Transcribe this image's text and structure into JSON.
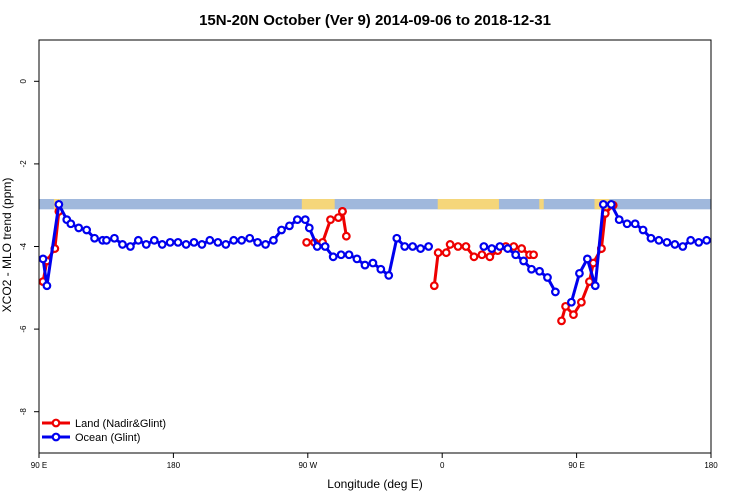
{
  "chart_data": {
    "type": "line",
    "title": "15N-20N October (Ver 9)   2014-09-06 to 2018-12-31",
    "xlabel": "Longitude (deg E)",
    "ylabel": "XCO2 - MLO trend (ppm)",
    "xlim": [
      90,
      450
    ],
    "ylim": [
      -9,
      1
    ],
    "x_ticks": [
      {
        "value": 90,
        "label": "90 E"
      },
      {
        "value": 180,
        "label": "180"
      },
      {
        "value": 270,
        "label": "90 W"
      },
      {
        "value": 360,
        "label": "0"
      },
      {
        "value": 450,
        "label": "90 E"
      },
      {
        "value": 540,
        "label": "180"
      }
    ],
    "y_ticks": [
      {
        "value": 0,
        "label": "0"
      },
      {
        "value": -2,
        "label": "-2"
      },
      {
        "value": -4,
        "label": "-4"
      },
      {
        "value": -6,
        "label": "-6"
      },
      {
        "value": -8,
        "label": "-8"
      }
    ],
    "legend_position": "bottom-left",
    "map_strip": {
      "y_top": -2.85,
      "y_bottom": -3.1,
      "ocean_color": "#a0b8dc",
      "land_color": "#f5d67a"
    },
    "series": [
      {
        "name": "Land (Nadir&Glint)",
        "color": "#ee0000",
        "segments": [
          {
            "x": [
              92.7,
              95.3,
              100.6,
              103.3
            ],
            "y": [
              -4.85,
              -4.35,
              -4.05,
              -3.15
            ]
          },
          {
            "x": [
              269.2,
              274.5,
              279.9,
              285.2,
              290.5,
              293.2
            ],
            "y": [
              -3.9,
              -3.9,
              -3.9,
              -3.35,
              -3.3,
              -3.15
            ]
          },
          {
            "x": [
              293.2,
              295.8
            ],
            "y": [
              -3.15,
              -3.75
            ]
          },
          {
            "x": [
              354.7,
              357.3,
              362.7,
              365.3,
              370.6,
              375.9,
              381.3,
              386.6,
              391.9,
              397.2,
              402.6,
              407.9,
              413.2,
              418.5,
              421.2
            ],
            "y": [
              -4.95,
              -4.15,
              -4.15,
              -3.95,
              -4.0,
              -4.0,
              -4.25,
              -4.2,
              -4.25,
              -4.1,
              -4.0,
              -4.0,
              -4.05,
              -4.2,
              -4.2
            ]
          },
          {
            "x": [
              439.9,
              442.6,
              447.9,
              453.2,
              458.6,
              461.2,
              466.6
            ],
            "y": [
              -5.8,
              -5.45,
              -5.65,
              -5.35,
              -4.85,
              -4.4,
              -4.05
            ]
          },
          {
            "x": [
              466.6,
              469.2,
              474.5
            ],
            "y": [
              -4.05,
              -3.2,
              -3.0
            ]
          }
        ]
      },
      {
        "name": "Ocean (Glint)",
        "color": "#0000ee",
        "segments": [
          {
            "x": [
              92.7,
              95.3,
              103.3,
              108.6,
              111.3,
              116.6,
              121.9,
              127.2,
              132.6,
              135.2,
              140.5,
              145.9,
              151.2,
              156.5,
              161.8,
              167.2,
              172.5,
              177.8,
              183.1,
              188.5,
              193.8,
              199.1,
              204.4,
              209.8,
              215.1,
              220.4,
              225.7,
              231.1,
              236.4,
              241.7,
              247.0,
              252.4,
              257.7,
              263.0,
              268.3,
              271.0,
              276.3,
              281.6,
              287.0,
              292.3,
              297.6,
              302.9,
              308.3,
              313.6,
              318.9,
              324.2,
              329.6,
              334.9,
              340.2,
              345.5,
              350.9
            ],
            "y": [
              -4.3,
              -4.95,
              -2.98,
              -3.35,
              -3.45,
              -3.55,
              -3.6,
              -3.8,
              -3.85,
              -3.85,
              -3.8,
              -3.95,
              -4.0,
              -3.85,
              -3.95,
              -3.85,
              -3.95,
              -3.9,
              -3.9,
              -3.95,
              -3.9,
              -3.95,
              -3.85,
              -3.9,
              -3.95,
              -3.85,
              -3.85,
              -3.8,
              -3.9,
              -3.95,
              -3.85,
              -3.6,
              -3.5,
              -3.35,
              -3.35,
              -3.55,
              -4.0,
              -4.0,
              -4.25,
              -4.2,
              -4.2,
              -4.3,
              -4.45,
              -4.4,
              -4.55,
              -4.7,
              -3.8,
              -4.0,
              -4.0,
              -4.05,
              -4.0
            ]
          },
          {
            "x": [
              387.9,
              393.2,
              398.6,
              403.9,
              409.2,
              414.5,
              419.8,
              425.2,
              430.5,
              435.8
            ],
            "y": [
              -4.0,
              -4.05,
              -4.0,
              -4.05,
              -4.2,
              -4.35,
              -4.55,
              -4.6,
              -4.75,
              -5.1
            ]
          },
          {
            "x": [
              446.5,
              451.9,
              457.2,
              462.5,
              467.9,
              473.2,
              478.5,
              483.8,
              489.2,
              494.5,
              499.8,
              505.1,
              510.5,
              515.8,
              521.1,
              526.4,
              531.8,
              537.1
            ],
            "y": [
              -5.35,
              -4.65,
              -4.3,
              -4.95,
              -2.98,
              -2.98,
              -3.35,
              -3.45,
              -3.45,
              -3.6,
              -3.8,
              -3.85,
              -3.9,
              -3.95,
              -4.0,
              -3.85,
              -3.9,
              -3.85
            ]
          }
        ]
      }
    ]
  }
}
